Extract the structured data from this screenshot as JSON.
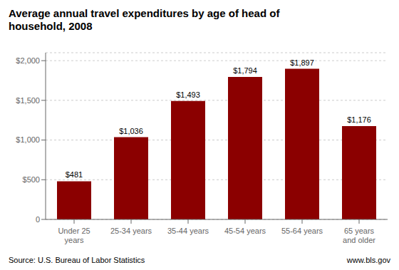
{
  "chart_data": {
    "type": "bar",
    "title": "Average annual travel expenditures by age of head of\nhousehold, 2008",
    "categories": [
      "Under 25 years",
      "25-34 years",
      "35-44 years",
      "45-54 years",
      "55-64 years",
      "65 years and older"
    ],
    "values": [
      481,
      1036,
      1493,
      1794,
      1897,
      1176
    ],
    "value_labels": [
      "$481",
      "$1,036",
      "$1,493",
      "$1,794",
      "$1,897",
      "$1,176"
    ],
    "data_labels": true,
    "color": "#8B0000",
    "ylim": [
      0,
      2100
    ],
    "yticks": [
      0,
      {
        "value": 500,
        "label": "$500"
      },
      {
        "value": 1000,
        "label": "$1,000"
      },
      {
        "value": 1500,
        "label": "$1,500"
      },
      {
        "value": 2000,
        "label": "$2,000"
      }
    ],
    "grid": true,
    "annotations": [
      "Source: U.S. Bureau of Labor Statistics",
      "www.bls.gov"
    ]
  }
}
